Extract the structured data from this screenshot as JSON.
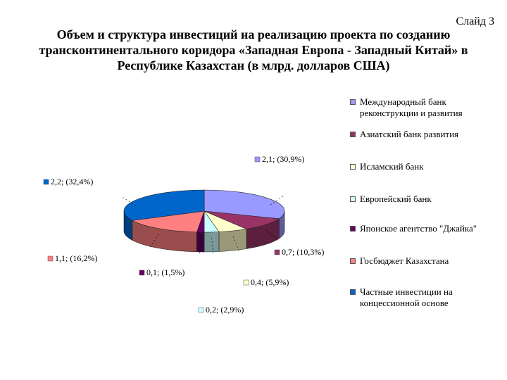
{
  "slide_label": "Слайд 3",
  "title_lines": [
    "Объем и структура инвестиций на реализацию проекта по созданию",
    "трансконтинентального коридора «Западная Европа - Западный Китай» в",
    "Республике Казахстан (в млрд. долларов США)"
  ],
  "chart_data": {
    "type": "pie",
    "title": "Объем и структура инвестиций на реализацию проекта по созданию трансконтинентального коридора «Западная Европа - Западный Китай» в Республике Казахстан (в млрд. долларов США)",
    "legend_position": "right",
    "slices": [
      {
        "name": "Международный банк реконструкции и развития",
        "value": 2.1,
        "percent": 30.9,
        "label": "2,1; (30,9%)",
        "color": "#9999ff"
      },
      {
        "name": "Азиатский банк развития",
        "value": 0.7,
        "percent": 10.3,
        "label": "0,7; (10,3%)",
        "color": "#993366"
      },
      {
        "name": "Исламский банк",
        "value": 0.4,
        "percent": 5.9,
        "label": "0,4; (5,9%)",
        "color": "#ffffcc"
      },
      {
        "name": "Европейский банк",
        "value": 0.2,
        "percent": 2.9,
        "label": "0,2; (2,9%)",
        "color": "#ccffff"
      },
      {
        "name": "Японское агентство \"Джайка\"",
        "value": 0.1,
        "percent": 1.5,
        "label": "0,1; (1,5%)",
        "color": "#660066"
      },
      {
        "name": "Госбюджет Казахстана",
        "value": 1.1,
        "percent": 16.2,
        "label": "1,1; (16,2%)",
        "color": "#ff8080"
      },
      {
        "name": "Частные инвестиции на концессионной основе",
        "value": 2.2,
        "percent": 32.4,
        "label": "2,2; (32,4%)",
        "color": "#0066cc"
      }
    ]
  }
}
